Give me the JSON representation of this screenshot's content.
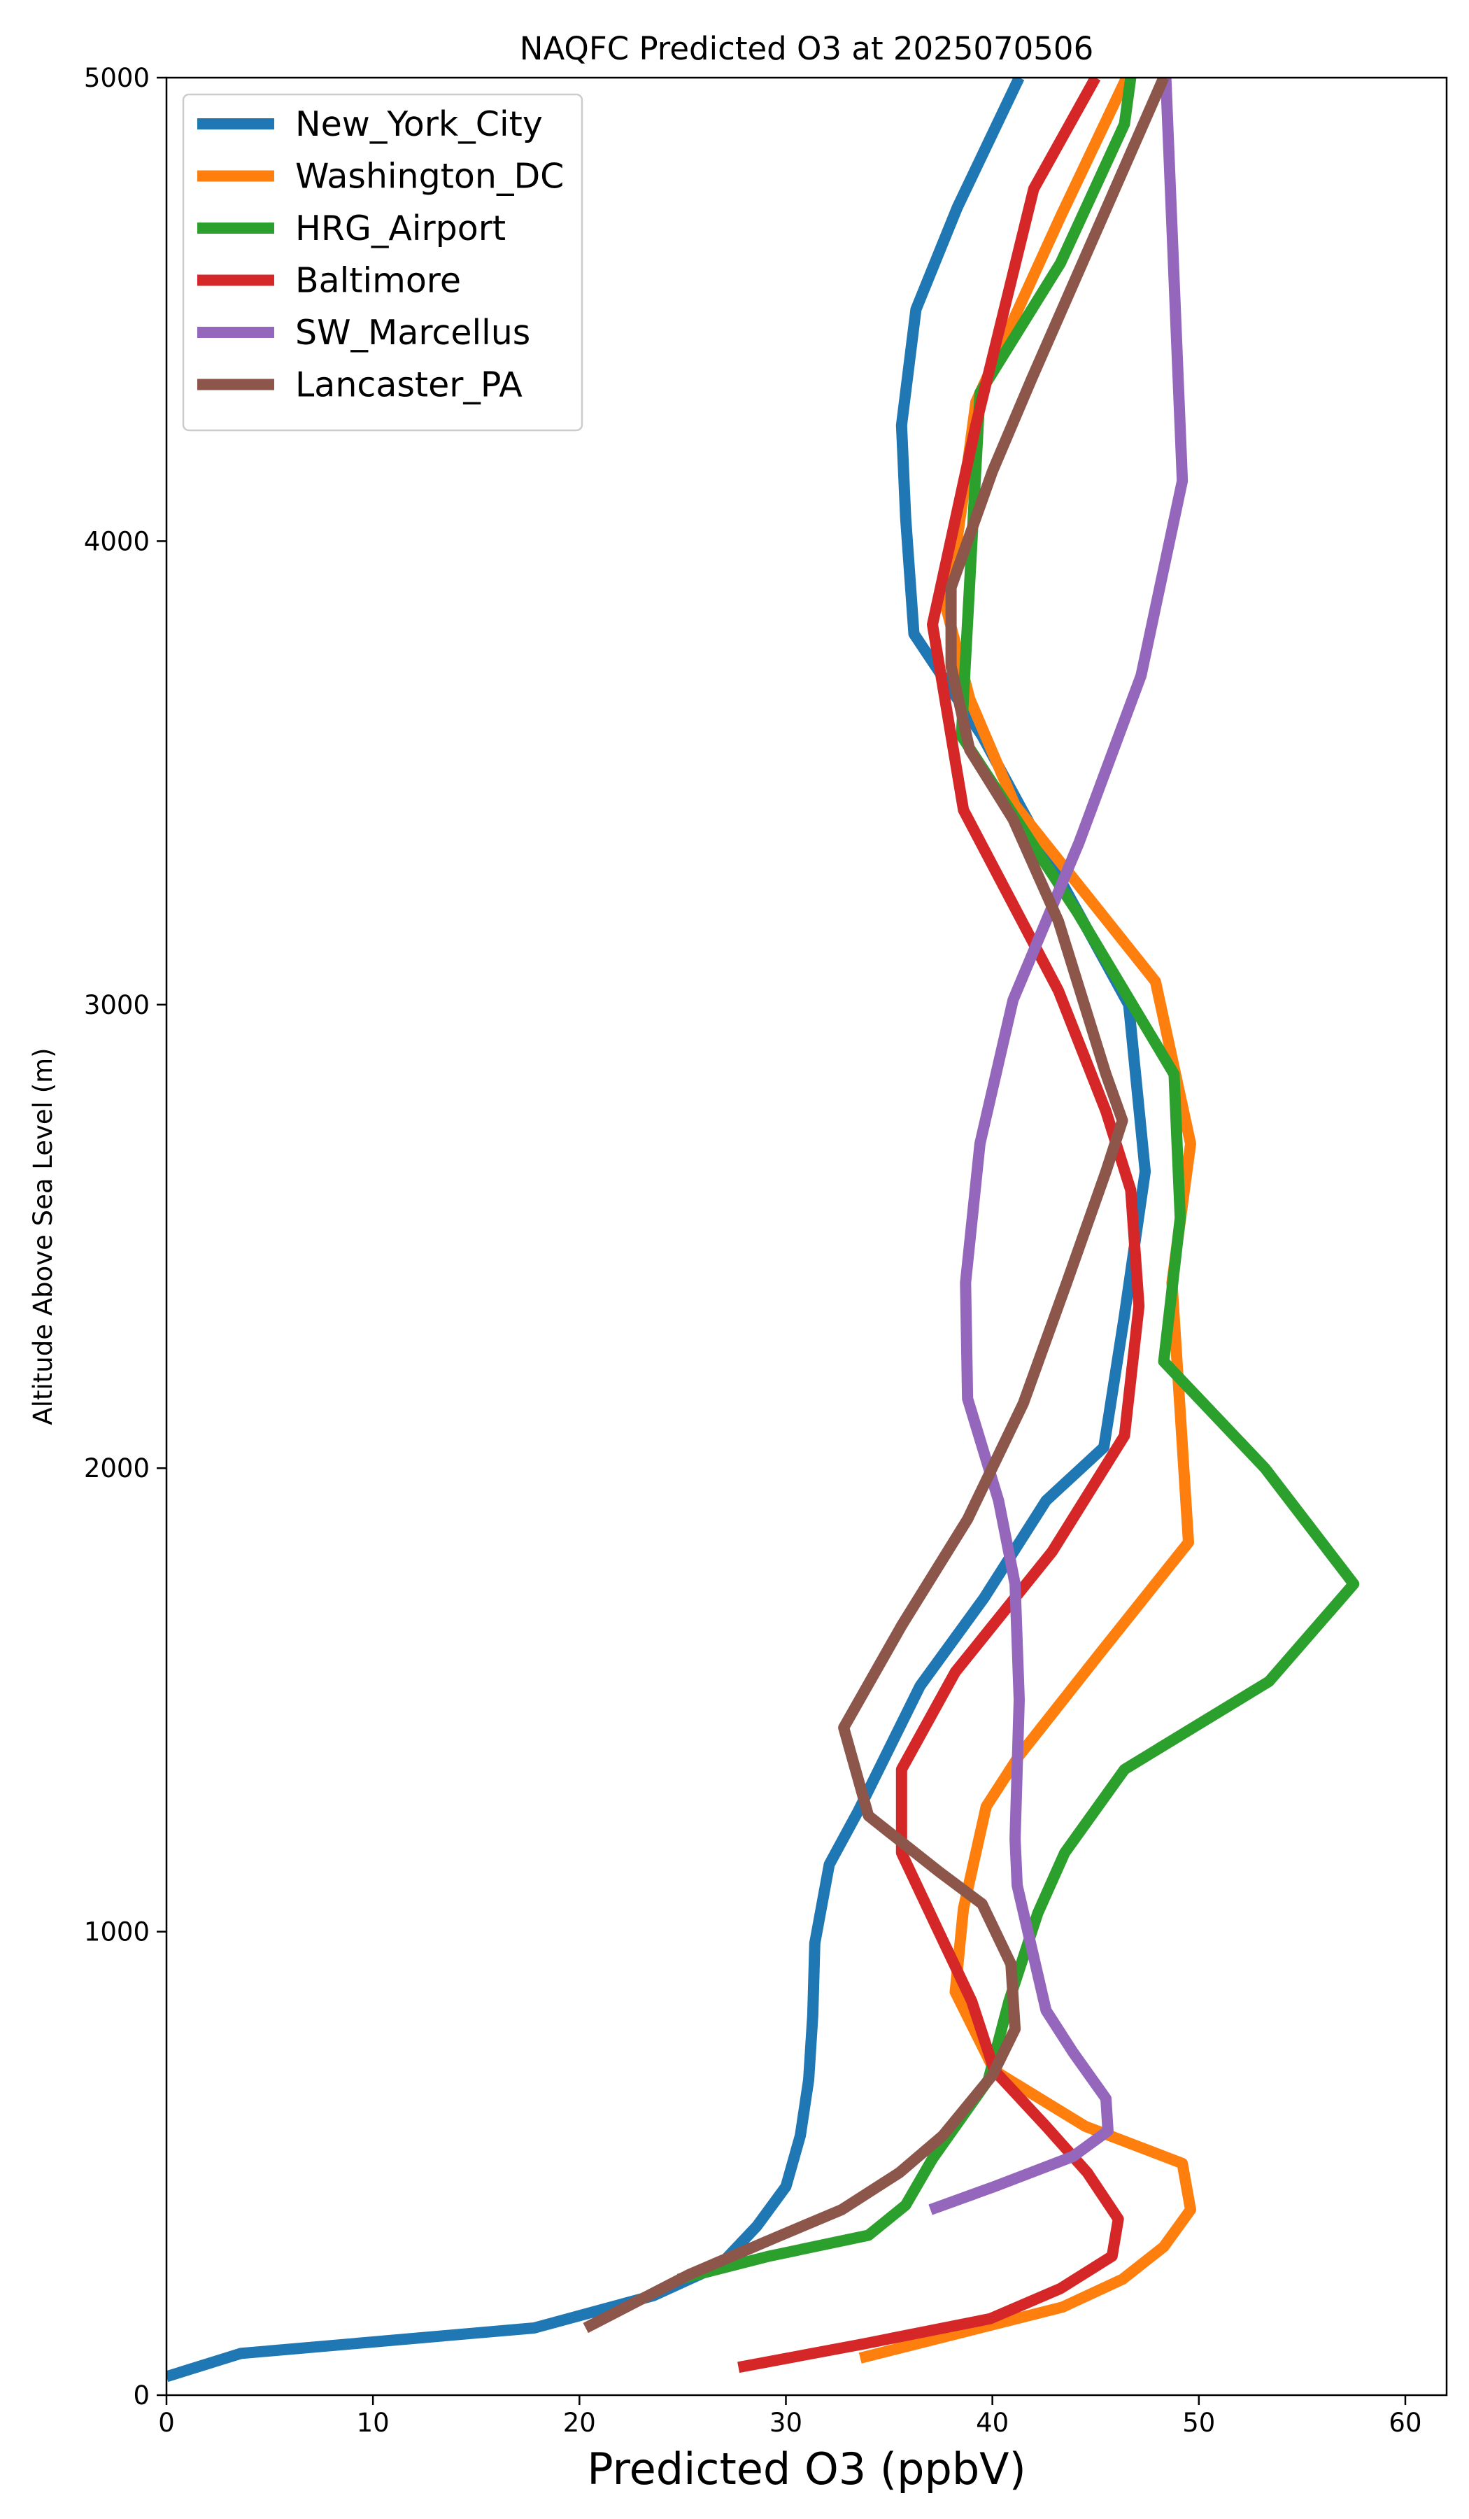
{
  "chart_data": {
    "type": "line",
    "title": "NAQFC Predicted O3 at 2025070506",
    "xlabel": "Predicted O3 (ppbV)",
    "ylabel": "Altitude Above Sea Level (m)",
    "xlim": [
      0,
      62
    ],
    "ylim": [
      0,
      5000
    ],
    "x_ticks": [
      0,
      10,
      20,
      30,
      40,
      50,
      60
    ],
    "y_ticks": [
      0,
      1000,
      2000,
      3000,
      4000,
      5000
    ],
    "grid": false,
    "legend_position": "top-left",
    "series": [
      {
        "name": "New_York_City",
        "color": "#1f77b4",
        "points": [
          [
            0,
            40
          ],
          [
            3.6,
            90
          ],
          [
            17.8,
            145
          ],
          [
            23.6,
            215
          ],
          [
            26.8,
            280
          ],
          [
            28.6,
            365
          ],
          [
            30,
            450
          ],
          [
            30.7,
            560
          ],
          [
            31.1,
            680
          ],
          [
            31.3,
            820
          ],
          [
            31.4,
            975
          ],
          [
            32.1,
            1145
          ],
          [
            33.5,
            1260
          ],
          [
            36.5,
            1530
          ],
          [
            39.6,
            1720
          ],
          [
            42.6,
            1930
          ],
          [
            45.4,
            2045
          ],
          [
            46.4,
            2330
          ],
          [
            47.4,
            2640
          ],
          [
            46.6,
            3000
          ],
          [
            42.3,
            3350
          ],
          [
            39.5,
            3580
          ],
          [
            36.2,
            3800
          ],
          [
            35.8,
            4050
          ],
          [
            35.6,
            4250
          ],
          [
            36.3,
            4500
          ],
          [
            38.3,
            4720
          ],
          [
            41.3,
            5000
          ]
        ]
      },
      {
        "name": "Washington_DC",
        "color": "#ff7f0e",
        "points": [
          [
            33.6,
            80
          ],
          [
            43.4,
            190
          ],
          [
            46.3,
            250
          ],
          [
            48.3,
            320
          ],
          [
            49.6,
            400
          ],
          [
            49.2,
            500
          ],
          [
            44.5,
            580
          ],
          [
            40.1,
            700
          ],
          [
            38.2,
            870
          ],
          [
            38.6,
            1050
          ],
          [
            39.7,
            1270
          ],
          [
            41.3,
            1380
          ],
          [
            45.2,
            1600
          ],
          [
            49.5,
            1840
          ],
          [
            48.7,
            2400
          ],
          [
            49.6,
            2700
          ],
          [
            47.9,
            3050
          ],
          [
            41.1,
            3430
          ],
          [
            38.9,
            3660
          ],
          [
            37.8,
            3850
          ],
          [
            38.6,
            4100
          ],
          [
            39.2,
            4300
          ],
          [
            43.3,
            4700
          ],
          [
            46.5,
            5000
          ]
        ]
      },
      {
        "name": "HRG_Airport",
        "color": "#2ca02c",
        "points": [
          [
            24.8,
            250
          ],
          [
            29.2,
            300
          ],
          [
            34,
            345
          ],
          [
            35.8,
            410
          ],
          [
            37.1,
            510
          ],
          [
            39.8,
            680
          ],
          [
            40.8,
            850
          ],
          [
            42.2,
            1040
          ],
          [
            43.5,
            1170
          ],
          [
            46.4,
            1350
          ],
          [
            53.4,
            1540
          ],
          [
            57.5,
            1750
          ],
          [
            53.2,
            2000
          ],
          [
            48.3,
            2230
          ],
          [
            49.1,
            2540
          ],
          [
            48.8,
            2850
          ],
          [
            44.1,
            3200
          ],
          [
            38.5,
            3580
          ],
          [
            39.4,
            4320
          ],
          [
            43.3,
            4600
          ],
          [
            46.4,
            4900
          ],
          [
            46.7,
            5000
          ]
        ]
      },
      {
        "name": "Baltimore",
        "color": "#d62728",
        "points": [
          [
            27.7,
            60
          ],
          [
            33.7,
            110
          ],
          [
            39.9,
            165
          ],
          [
            43.3,
            230
          ],
          [
            45.8,
            300
          ],
          [
            46.1,
            380
          ],
          [
            44.6,
            480
          ],
          [
            42.6,
            580
          ],
          [
            40.1,
            700
          ],
          [
            39,
            850
          ],
          [
            37.4,
            1000
          ],
          [
            35.6,
            1170
          ],
          [
            35.6,
            1350
          ],
          [
            38.2,
            1560
          ],
          [
            42.9,
            1820
          ],
          [
            46.4,
            2070
          ],
          [
            47.1,
            2350
          ],
          [
            46.7,
            2600
          ],
          [
            45.5,
            2770
          ],
          [
            43.2,
            3030
          ],
          [
            38.6,
            3420
          ],
          [
            37.1,
            3820
          ],
          [
            39.2,
            4250
          ],
          [
            42,
            4760
          ],
          [
            45,
            5000
          ]
        ]
      },
      {
        "name": "SW_Marcellus",
        "color": "#9467bd",
        "points": [
          [
            37,
            400
          ],
          [
            40.1,
            450
          ],
          [
            43.9,
            515
          ],
          [
            45.6,
            570
          ],
          [
            45.5,
            640
          ],
          [
            43.9,
            740
          ],
          [
            42.6,
            830
          ],
          [
            41.2,
            1100
          ],
          [
            41.1,
            1200
          ],
          [
            41.3,
            1500
          ],
          [
            41.1,
            1750
          ],
          [
            40.3,
            1930
          ],
          [
            38.8,
            2150
          ],
          [
            38.7,
            2400
          ],
          [
            39.4,
            2700
          ],
          [
            41,
            3010
          ],
          [
            44.2,
            3350
          ],
          [
            47.2,
            3710
          ],
          [
            49.2,
            4130
          ],
          [
            48.4,
            5000
          ]
        ]
      },
      {
        "name": "Lancaster_PA",
        "color": "#8c564b",
        "points": [
          [
            20.3,
            145
          ],
          [
            25.3,
            260
          ],
          [
            29.5,
            340
          ],
          [
            32.7,
            400
          ],
          [
            35.5,
            480
          ],
          [
            37.6,
            560
          ],
          [
            40,
            690
          ],
          [
            41.1,
            790
          ],
          [
            40.9,
            930
          ],
          [
            39.5,
            1060
          ],
          [
            37.4,
            1130
          ],
          [
            34,
            1250
          ],
          [
            32.8,
            1440
          ],
          [
            35.6,
            1660
          ],
          [
            38.8,
            1890
          ],
          [
            41.5,
            2140
          ],
          [
            43.6,
            2400
          ],
          [
            45.5,
            2640
          ],
          [
            46.3,
            2750
          ],
          [
            45.5,
            2850
          ],
          [
            43.2,
            3180
          ],
          [
            41,
            3400
          ],
          [
            38.9,
            3550
          ],
          [
            38,
            3730
          ],
          [
            38,
            3900
          ],
          [
            40,
            4150
          ],
          [
            41.9,
            4350
          ],
          [
            48.3,
            5000
          ]
        ]
      }
    ]
  }
}
